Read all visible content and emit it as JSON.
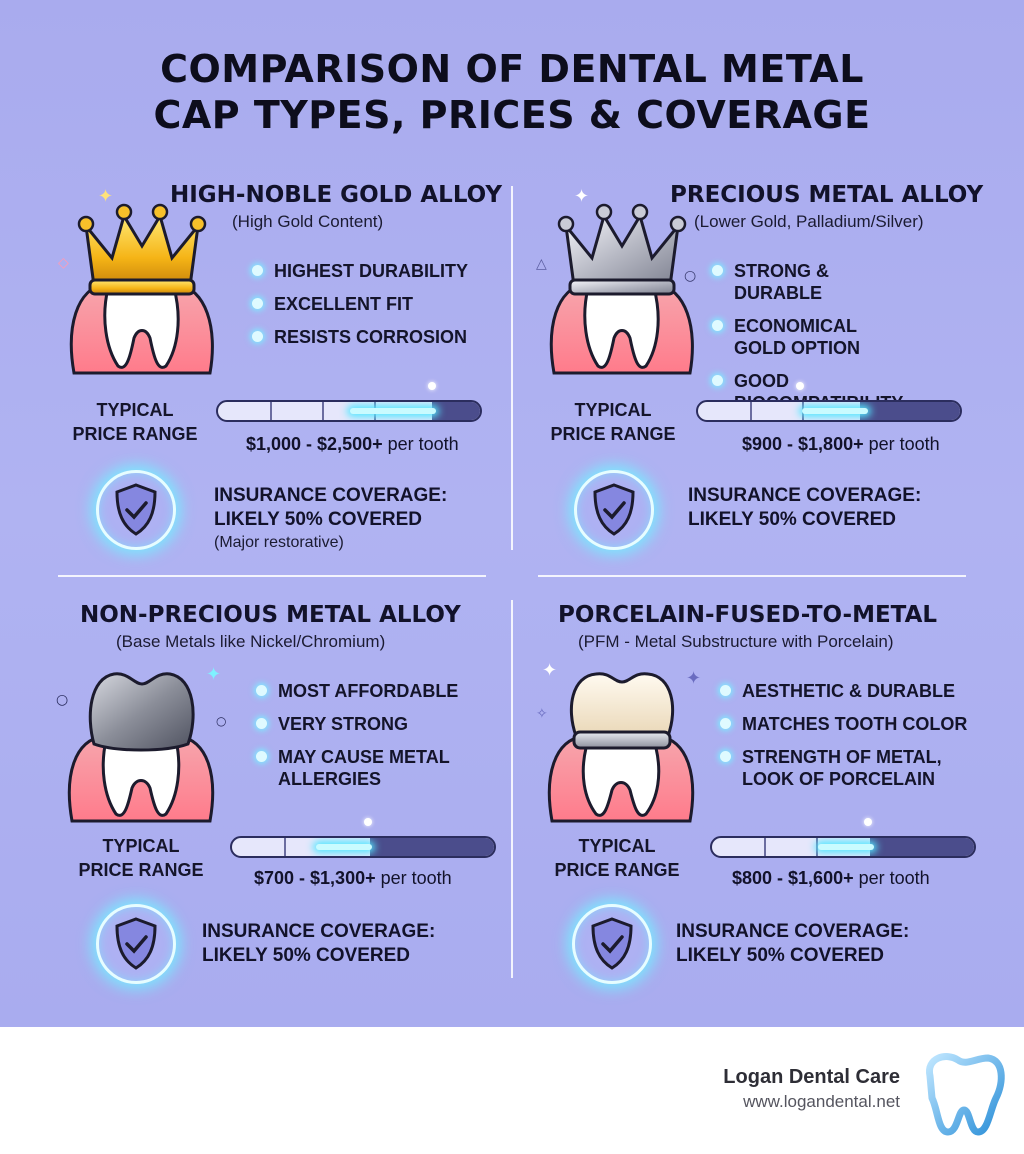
{
  "title": {
    "line1": "COMPARISON OF DENTAL METAL",
    "line2": "CAP TYPES, PRICES & COVERAGE"
  },
  "cards": [
    {
      "title": "HIGH-NOBLE GOLD ALLOY",
      "subtitle": "(High Gold Content)",
      "icon": "gold-crown-icon",
      "bullets": [
        "HIGHEST DURABILITY",
        "EXCELLENT FIT",
        "RESISTS CORROSION"
      ],
      "price_label_1": "TYPICAL",
      "price_label_2": "PRICE RANGE",
      "price_range": "$1,000 - $2,500+",
      "price_unit": "per tooth",
      "insurance_1": "INSURANCE COVERAGE:",
      "insurance_2": "LIKELY 50% COVERED",
      "insurance_note": "(Major restorative)"
    },
    {
      "title": "PRECIOUS METAL ALLOY",
      "subtitle": "(Lower Gold, Palladium/Silver)",
      "icon": "silver-crown-icon",
      "bullets": [
        "STRONG & DURABLE",
        "ECONOMICAL GOLD OPTION",
        "GOOD BIOCOMPATIBILITY"
      ],
      "price_label_1": "TYPICAL",
      "price_label_2": "PRICE RANGE",
      "price_range": "$900 - $1,800+",
      "price_unit": "per tooth",
      "insurance_1": "INSURANCE COVERAGE:",
      "insurance_2": "LIKELY 50% COVERED"
    },
    {
      "title": "NON-PRECIOUS METAL ALLOY",
      "subtitle": "(Base Metals like Nickel/Chromium)",
      "icon": "metal-cap-tooth-icon",
      "bullets": [
        "MOST AFFORDABLE",
        "VERY STRONG",
        "MAY CAUSE METAL ALLERGIES"
      ],
      "price_label_1": "TYPICAL",
      "price_label_2": "PRICE RANGE",
      "price_range": "$700 - $1,300+",
      "price_unit": "per tooth",
      "insurance_1": "INSURANCE COVERAGE:",
      "insurance_2": "LIKELY 50% COVERED"
    },
    {
      "title": "PORCELAIN-FUSED-TO-METAL",
      "subtitle": "(PFM - Metal Substructure with Porcelain)",
      "icon": "porcelain-tooth-icon",
      "bullets": [
        "AESTHETIC & DURABLE",
        "MATCHES TOOTH COLOR",
        "STRENGTH OF METAL, LOOK OF PORCELAIN"
      ],
      "price_label_1": "TYPICAL",
      "price_label_2": "PRICE RANGE",
      "price_range": "$800 - $1,600+",
      "price_unit": "per tooth",
      "insurance_1": "INSURANCE COVERAGE:",
      "insurance_2": "LIKELY 50% COVERED"
    }
  ],
  "footer": {
    "name": "Logan Dental Care",
    "url": "www.logandental.net",
    "logo_icon": "tooth-logo-icon"
  },
  "colors": {
    "background": "#aeb0f1",
    "glow": "#54e7ff",
    "bar_dark": "#4b4d8c"
  }
}
